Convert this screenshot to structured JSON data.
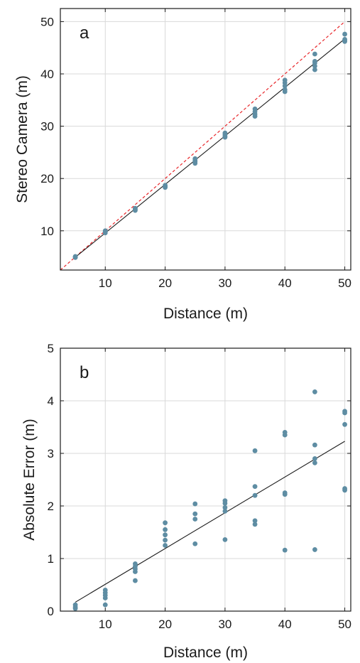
{
  "chart_data": [
    {
      "type": "scatter",
      "panel_label": "a",
      "xlabel": "Distance (m)",
      "ylabel": "Stereo Camera (m)",
      "xlim": [
        2.5,
        51
      ],
      "ylim": [
        2.5,
        52.5
      ],
      "xticks": [
        10,
        20,
        30,
        40,
        50
      ],
      "yticks": [
        10,
        20,
        30,
        40,
        50
      ],
      "grid": true,
      "points": [
        [
          5,
          4.9
        ],
        [
          5,
          5.0
        ],
        [
          5,
          5.1
        ],
        [
          10,
          9.6
        ],
        [
          10,
          9.8
        ],
        [
          10,
          9.9
        ],
        [
          10,
          10.0
        ],
        [
          15,
          13.9
        ],
        [
          15,
          14.1
        ],
        [
          15,
          14.3
        ],
        [
          20,
          18.3
        ],
        [
          20,
          18.5
        ],
        [
          20,
          18.7
        ],
        [
          25,
          22.9
        ],
        [
          25,
          23.2
        ],
        [
          25,
          23.5
        ],
        [
          25,
          23.8
        ],
        [
          30,
          27.9
        ],
        [
          30,
          28.1
        ],
        [
          30,
          28.4
        ],
        [
          30,
          28.7
        ],
        [
          35,
          31.9
        ],
        [
          35,
          32.3
        ],
        [
          35,
          32.8
        ],
        [
          35,
          33.3
        ],
        [
          40,
          36.6
        ],
        [
          40,
          37.0
        ],
        [
          40,
          37.7
        ],
        [
          40,
          38.3
        ],
        [
          40,
          38.8
        ],
        [
          45,
          40.8
        ],
        [
          45,
          41.5
        ],
        [
          45,
          42.1
        ],
        [
          45,
          42.4
        ],
        [
          45,
          43.8
        ],
        [
          50,
          46.2
        ],
        [
          50,
          46.4
        ],
        [
          50,
          46.6
        ],
        [
          50,
          47.6
        ]
      ],
      "fit_line": [
        [
          5,
          4.95
        ],
        [
          50,
          46.7
        ]
      ],
      "identity_line": [
        [
          2.5,
          2.5
        ],
        [
          50,
          50
        ]
      ],
      "colors": {
        "points": "#5e8da3",
        "fit": "#1a1a1a",
        "identity": "#e8262a",
        "grid": "#d9d9d9"
      }
    },
    {
      "type": "scatter",
      "panel_label": "b",
      "xlabel": "Distance (m)",
      "ylabel": "Absolute Error (m)",
      "xlim": [
        2.5,
        51
      ],
      "ylim": [
        0,
        5
      ],
      "xticks": [
        10,
        20,
        30,
        40,
        50
      ],
      "yticks": [
        0,
        1,
        2,
        3,
        4,
        5
      ],
      "grid": true,
      "points": [
        [
          5,
          0.05
        ],
        [
          5,
          0.08
        ],
        [
          5,
          0.12
        ],
        [
          10,
          0.12
        ],
        [
          10,
          0.25
        ],
        [
          10,
          0.3
        ],
        [
          10,
          0.35
        ],
        [
          10,
          0.4
        ],
        [
          15,
          0.58
        ],
        [
          15,
          0.75
        ],
        [
          15,
          0.8
        ],
        [
          15,
          0.85
        ],
        [
          15,
          0.9
        ],
        [
          20,
          1.25
        ],
        [
          20,
          1.35
        ],
        [
          20,
          1.45
        ],
        [
          20,
          1.55
        ],
        [
          20,
          1.68
        ],
        [
          25,
          1.28
        ],
        [
          25,
          1.75
        ],
        [
          25,
          1.85
        ],
        [
          25,
          2.04
        ],
        [
          30,
          1.36
        ],
        [
          30,
          1.9
        ],
        [
          30,
          1.97
        ],
        [
          30,
          2.05
        ],
        [
          30,
          2.1
        ],
        [
          35,
          1.65
        ],
        [
          35,
          1.72
        ],
        [
          35,
          2.2
        ],
        [
          35,
          2.37
        ],
        [
          35,
          3.05
        ],
        [
          40,
          1.16
        ],
        [
          40,
          2.22
        ],
        [
          40,
          2.25
        ],
        [
          40,
          3.35
        ],
        [
          40,
          3.4
        ],
        [
          45,
          1.17
        ],
        [
          45,
          2.82
        ],
        [
          45,
          2.9
        ],
        [
          45,
          3.16
        ],
        [
          45,
          4.17
        ],
        [
          50,
          2.3
        ],
        [
          50,
          2.33
        ],
        [
          50,
          3.55
        ],
        [
          50,
          3.77
        ],
        [
          50,
          3.8
        ]
      ],
      "fit_line": [
        [
          5,
          0.17
        ],
        [
          50,
          3.23
        ]
      ],
      "colors": {
        "points": "#5e8da3",
        "fit": "#1a1a1a",
        "grid": "#d9d9d9"
      }
    }
  ]
}
